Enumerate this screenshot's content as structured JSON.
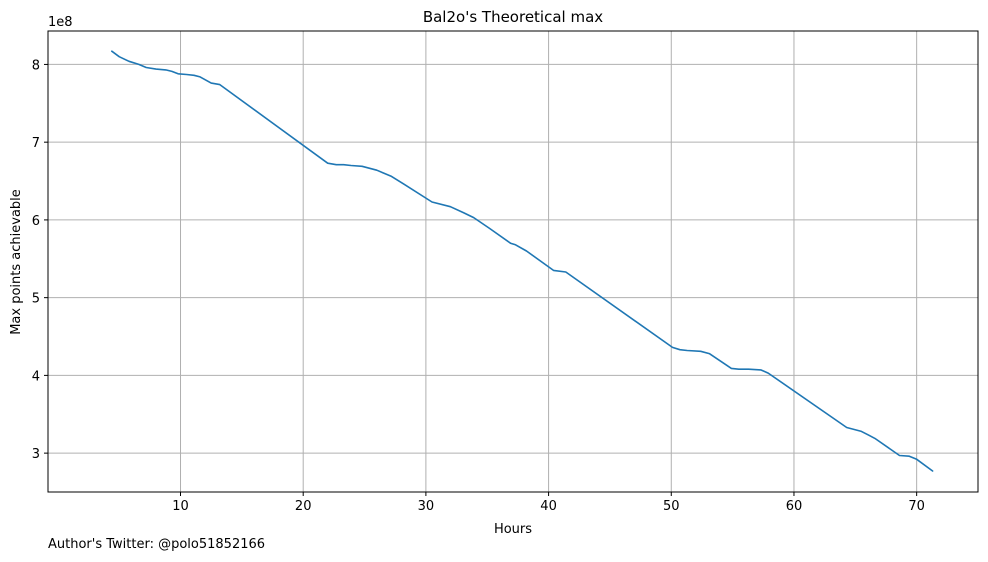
{
  "chart_data": {
    "type": "line",
    "title": "Bal2o's Theoretical max",
    "xlabel": "Hours",
    "ylabel": "Max points achievable",
    "y_offset_label": "1e8",
    "xlim": [
      -0.8,
      75.0
    ],
    "ylim": [
      2.5,
      8.43
    ],
    "x_ticks": [
      10,
      20,
      30,
      40,
      50,
      60,
      70
    ],
    "x_tick_labels": [
      "10",
      "20",
      "30",
      "40",
      "50",
      "60",
      "70"
    ],
    "y_ticks": [
      3,
      4,
      5,
      6,
      7,
      8
    ],
    "y_tick_labels": [
      "3",
      "4",
      "5",
      "6",
      "7",
      "8"
    ],
    "grid": true,
    "line_color": "#1f77b4",
    "grid_color": "#b0b0b0",
    "series": [
      {
        "x": [
          4.4,
          5.0,
          5.8,
          6.6,
          7.2,
          8.0,
          8.8,
          9.3,
          9.8,
          10.5,
          11.1,
          11.6,
          12.5,
          13.2,
          22.0,
          22.7,
          23.3,
          23.9,
          24.8,
          26.0,
          27.2,
          28.2,
          30.5,
          32.0,
          33.1,
          33.9,
          35.2,
          36.9,
          37.3,
          38.2,
          40.4,
          41.4,
          50.1,
          50.7,
          51.3,
          52.4,
          53.1,
          54.9,
          55.5,
          56.3,
          57.3,
          57.9,
          64.3,
          65.5,
          66.1,
          66.6,
          68.6,
          69.4,
          70.0,
          71.3
        ],
        "y": [
          8.17,
          8.1,
          8.04,
          8.0,
          7.96,
          7.94,
          7.93,
          7.91,
          7.88,
          7.87,
          7.86,
          7.84,
          7.76,
          7.74,
          6.73,
          6.71,
          6.71,
          6.7,
          6.69,
          6.64,
          6.56,
          6.46,
          6.23,
          6.17,
          6.09,
          6.03,
          5.89,
          5.7,
          5.68,
          5.6,
          5.35,
          5.33,
          4.36,
          4.33,
          4.32,
          4.31,
          4.28,
          4.09,
          4.08,
          4.08,
          4.07,
          4.03,
          3.33,
          3.28,
          3.23,
          3.19,
          2.97,
          2.96,
          2.92,
          2.77
        ]
      }
    ]
  },
  "footer": {
    "text": "Author's Twitter: @polo51852166"
  }
}
